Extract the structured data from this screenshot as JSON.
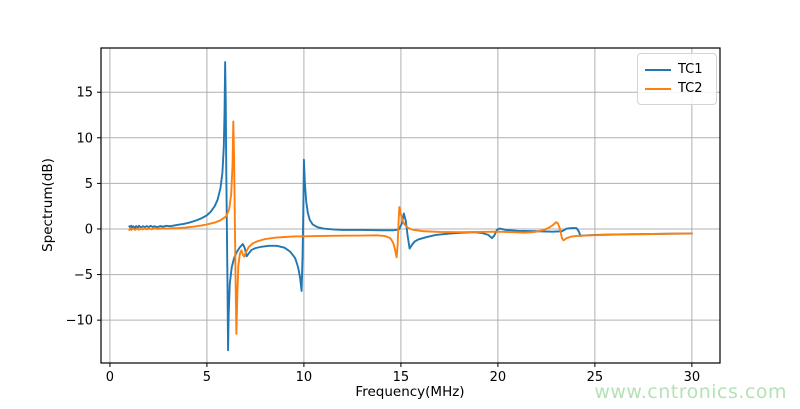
{
  "figure": {
    "background": "#ffffff",
    "watermark": {
      "text": "www.cntronics.com",
      "color": "#b5e2b5"
    }
  },
  "chart_data": {
    "type": "line",
    "title": "",
    "xlabel": "Frequency(MHz)",
    "ylabel": "Spectrum(dB)",
    "xlim": [
      -0.46,
      31.45
    ],
    "ylim": [
      -14.7,
      19.85
    ],
    "x_ticks": [
      0,
      5,
      10,
      15,
      20,
      25,
      30
    ],
    "y_ticks": [
      -10,
      -5,
      0,
      5,
      10,
      15
    ],
    "grid": true,
    "grid_color": "#b0b0b0",
    "spine_color": "#000000",
    "legend": {
      "position": "upper right",
      "entries": [
        "TC1",
        "TC2"
      ]
    },
    "series": [
      {
        "name": "TC1",
        "color": "#1f77b4",
        "points": [
          [
            1.0,
            0.3
          ],
          [
            1.05,
            0.1
          ],
          [
            1.1,
            0.35
          ],
          [
            1.15,
            0.15
          ],
          [
            1.2,
            0.3
          ],
          [
            1.3,
            0.1
          ],
          [
            1.35,
            0.32
          ],
          [
            1.45,
            0.18
          ],
          [
            1.5,
            0.35
          ],
          [
            1.6,
            0.15
          ],
          [
            1.7,
            0.3
          ],
          [
            1.8,
            0.2
          ],
          [
            1.9,
            0.32
          ],
          [
            2.0,
            0.2
          ],
          [
            2.1,
            0.35
          ],
          [
            2.2,
            0.22
          ],
          [
            2.3,
            0.3
          ],
          [
            2.45,
            0.2
          ],
          [
            2.6,
            0.32
          ],
          [
            2.75,
            0.25
          ],
          [
            2.9,
            0.35
          ],
          [
            3.1,
            0.3
          ],
          [
            3.3,
            0.38
          ],
          [
            3.5,
            0.45
          ],
          [
            3.8,
            0.55
          ],
          [
            4.1,
            0.7
          ],
          [
            4.4,
            0.9
          ],
          [
            4.7,
            1.15
          ],
          [
            5.0,
            1.5
          ],
          [
            5.2,
            1.9
          ],
          [
            5.4,
            2.5
          ],
          [
            5.55,
            3.2
          ],
          [
            5.7,
            4.5
          ],
          [
            5.8,
            6.2
          ],
          [
            5.87,
            9.0
          ],
          [
            5.91,
            13.0
          ],
          [
            5.94,
            18.3
          ],
          [
            5.97,
            14.0
          ],
          [
            6.0,
            6.0
          ],
          [
            6.03,
            0.0
          ],
          [
            6.06,
            -6.0
          ],
          [
            6.09,
            -13.3
          ],
          [
            6.12,
            -9.5
          ],
          [
            6.18,
            -6.0
          ],
          [
            6.28,
            -4.2
          ],
          [
            6.4,
            -3.2
          ],
          [
            6.55,
            -2.5
          ],
          [
            6.7,
            -2.0
          ],
          [
            6.85,
            -1.65
          ],
          [
            6.95,
            -2.1
          ],
          [
            7.05,
            -3.0
          ],
          [
            7.15,
            -2.7
          ],
          [
            7.3,
            -2.3
          ],
          [
            7.5,
            -2.1
          ],
          [
            7.8,
            -1.95
          ],
          [
            8.2,
            -1.85
          ],
          [
            8.6,
            -1.85
          ],
          [
            9.0,
            -2.05
          ],
          [
            9.3,
            -2.5
          ],
          [
            9.55,
            -3.2
          ],
          [
            9.7,
            -4.2
          ],
          [
            9.8,
            -5.3
          ],
          [
            9.88,
            -6.8
          ],
          [
            9.93,
            -3.0
          ],
          [
            9.97,
            2.0
          ],
          [
            10.0,
            7.6
          ],
          [
            10.05,
            5.0
          ],
          [
            10.12,
            3.0
          ],
          [
            10.2,
            1.8
          ],
          [
            10.3,
            1.0
          ],
          [
            10.45,
            0.5
          ],
          [
            10.7,
            0.2
          ],
          [
            11.0,
            0.05
          ],
          [
            11.5,
            -0.05
          ],
          [
            12.0,
            -0.1
          ],
          [
            13.0,
            -0.1
          ],
          [
            14.0,
            -0.15
          ],
          [
            14.6,
            -0.15
          ],
          [
            14.9,
            -0.05
          ],
          [
            15.05,
            0.6
          ],
          [
            15.15,
            1.7
          ],
          [
            15.25,
            0.9
          ],
          [
            15.35,
            -0.8
          ],
          [
            15.45,
            -2.15
          ],
          [
            15.55,
            -1.8
          ],
          [
            15.7,
            -1.4
          ],
          [
            15.9,
            -1.15
          ],
          [
            16.3,
            -0.9
          ],
          [
            16.8,
            -0.65
          ],
          [
            17.5,
            -0.5
          ],
          [
            18.2,
            -0.4
          ],
          [
            18.8,
            -0.35
          ],
          [
            19.2,
            -0.45
          ],
          [
            19.5,
            -0.65
          ],
          [
            19.7,
            -1.0
          ],
          [
            19.82,
            -0.7
          ],
          [
            19.95,
            -0.1
          ],
          [
            20.1,
            0.05
          ],
          [
            20.4,
            -0.1
          ],
          [
            21.0,
            -0.2
          ],
          [
            22.0,
            -0.25
          ],
          [
            22.8,
            -0.3
          ],
          [
            23.3,
            -0.25
          ],
          [
            23.55,
            0.05
          ],
          [
            23.8,
            0.1
          ],
          [
            24.05,
            0.1
          ],
          [
            24.18,
            -0.3
          ],
          [
            24.25,
            -0.75
          ],
          [
            24.6,
            -0.7
          ],
          [
            25.0,
            -0.65
          ],
          [
            26.0,
            -0.6
          ],
          [
            27.0,
            -0.57
          ],
          [
            28.0,
            -0.55
          ],
          [
            29.0,
            -0.52
          ],
          [
            30.0,
            -0.5
          ]
        ]
      },
      {
        "name": "TC2",
        "color": "#ff7f0e",
        "points": [
          [
            1.0,
            -0.1
          ],
          [
            1.05,
            0.08
          ],
          [
            1.1,
            -0.12
          ],
          [
            1.2,
            0.05
          ],
          [
            1.3,
            -0.1
          ],
          [
            1.4,
            0.05
          ],
          [
            1.5,
            -0.08
          ],
          [
            1.6,
            0.05
          ],
          [
            1.7,
            -0.05
          ],
          [
            1.8,
            0.06
          ],
          [
            1.9,
            -0.04
          ],
          [
            2.0,
            0.05
          ],
          [
            2.15,
            -0.03
          ],
          [
            2.3,
            0.06
          ],
          [
            2.5,
            0.0
          ],
          [
            2.7,
            0.07
          ],
          [
            2.9,
            0.03
          ],
          [
            3.2,
            0.08
          ],
          [
            3.5,
            0.1
          ],
          [
            3.9,
            0.15
          ],
          [
            4.3,
            0.25
          ],
          [
            4.7,
            0.38
          ],
          [
            5.0,
            0.5
          ],
          [
            5.4,
            0.7
          ],
          [
            5.7,
            0.95
          ],
          [
            6.0,
            1.4
          ],
          [
            6.15,
            2.2
          ],
          [
            6.25,
            3.8
          ],
          [
            6.32,
            7.0
          ],
          [
            6.36,
            11.8
          ],
          [
            6.4,
            8.0
          ],
          [
            6.44,
            1.0
          ],
          [
            6.48,
            -6.0
          ],
          [
            6.52,
            -11.5
          ],
          [
            6.57,
            -7.0
          ],
          [
            6.62,
            -4.0
          ],
          [
            6.7,
            -2.7
          ],
          [
            6.78,
            -2.35
          ],
          [
            6.85,
            -2.8
          ],
          [
            6.92,
            -3.05
          ],
          [
            7.0,
            -2.6
          ],
          [
            7.15,
            -2.0
          ],
          [
            7.35,
            -1.6
          ],
          [
            7.6,
            -1.35
          ],
          [
            8.0,
            -1.1
          ],
          [
            8.5,
            -0.95
          ],
          [
            9.0,
            -0.88
          ],
          [
            9.5,
            -0.82
          ],
          [
            10.0,
            -0.8
          ],
          [
            11.0,
            -0.76
          ],
          [
            12.0,
            -0.74
          ],
          [
            13.0,
            -0.72
          ],
          [
            13.8,
            -0.7
          ],
          [
            14.2,
            -0.78
          ],
          [
            14.45,
            -1.0
          ],
          [
            14.6,
            -1.5
          ],
          [
            14.7,
            -2.3
          ],
          [
            14.78,
            -3.1
          ],
          [
            14.83,
            -1.8
          ],
          [
            14.88,
            0.8
          ],
          [
            14.92,
            2.4
          ],
          [
            15.0,
            1.6
          ],
          [
            15.1,
            0.85
          ],
          [
            15.2,
            0.45
          ],
          [
            15.35,
            0.15
          ],
          [
            15.55,
            -0.05
          ],
          [
            15.8,
            -0.15
          ],
          [
            16.2,
            -0.25
          ],
          [
            17.0,
            -0.32
          ],
          [
            18.0,
            -0.35
          ],
          [
            19.0,
            -0.32
          ],
          [
            20.0,
            -0.3
          ],
          [
            20.8,
            -0.35
          ],
          [
            21.4,
            -0.4
          ],
          [
            21.9,
            -0.32
          ],
          [
            22.3,
            -0.15
          ],
          [
            22.6,
            0.1
          ],
          [
            22.85,
            0.45
          ],
          [
            23.0,
            0.75
          ],
          [
            23.1,
            0.6
          ],
          [
            23.2,
            0.0
          ],
          [
            23.3,
            -1.0
          ],
          [
            23.38,
            -1.25
          ],
          [
            23.55,
            -1.0
          ],
          [
            23.75,
            -0.85
          ],
          [
            24.0,
            -0.78
          ],
          [
            24.5,
            -0.72
          ],
          [
            25.0,
            -0.68
          ],
          [
            26.0,
            -0.62
          ],
          [
            27.0,
            -0.58
          ],
          [
            28.0,
            -0.55
          ],
          [
            29.0,
            -0.52
          ],
          [
            30.0,
            -0.5
          ]
        ]
      }
    ]
  }
}
